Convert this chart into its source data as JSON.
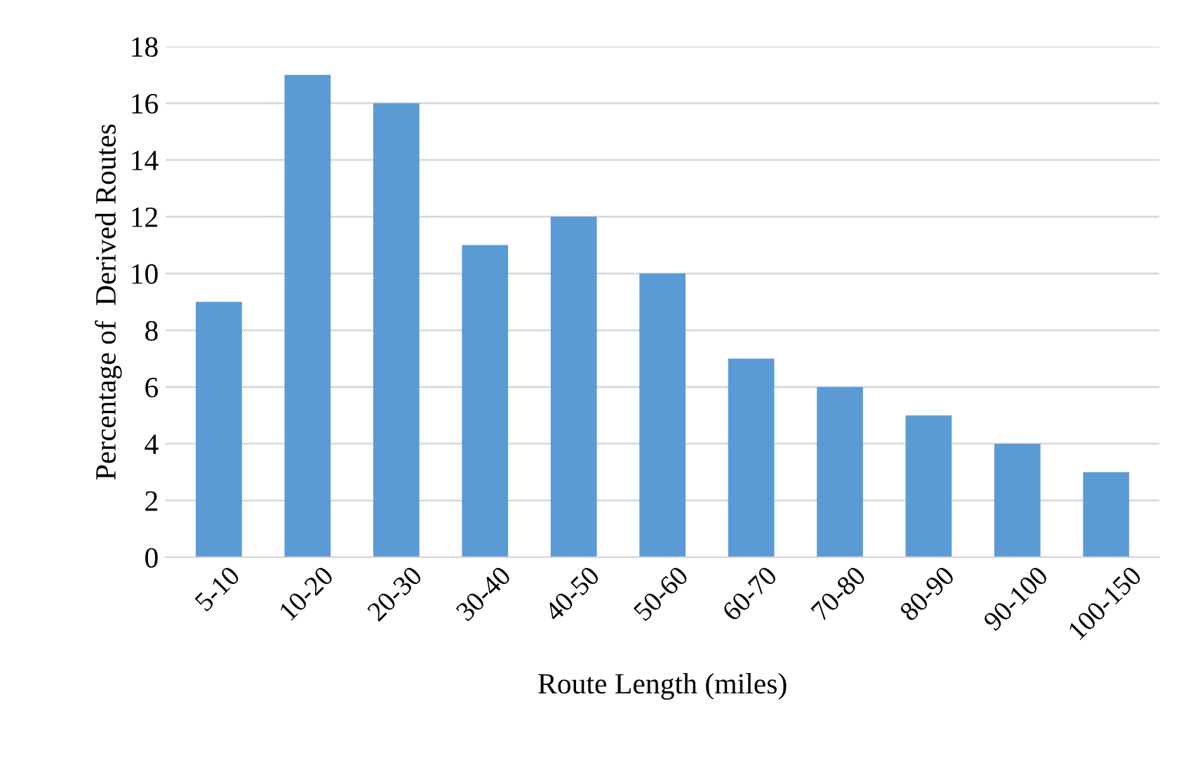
{
  "chart_data": {
    "type": "bar",
    "xlabel": "Route Length (miles)",
    "ylabel": "Percentage of  Derived Routes",
    "categories": [
      "5-10",
      "10-20",
      "20-30",
      "30-40",
      "40-50",
      "50-60",
      "60-70",
      "70-80",
      "80-90",
      "90-100",
      "100-150"
    ],
    "values": [
      9,
      17,
      16,
      11,
      12,
      10,
      7,
      6,
      5,
      4,
      3
    ],
    "color": "#5b9bd5",
    "ylim": [
      0,
      18
    ],
    "yticks": [
      0,
      2,
      4,
      6,
      8,
      10,
      12,
      14,
      16,
      18
    ],
    "grid": "y",
    "legend": false
  }
}
